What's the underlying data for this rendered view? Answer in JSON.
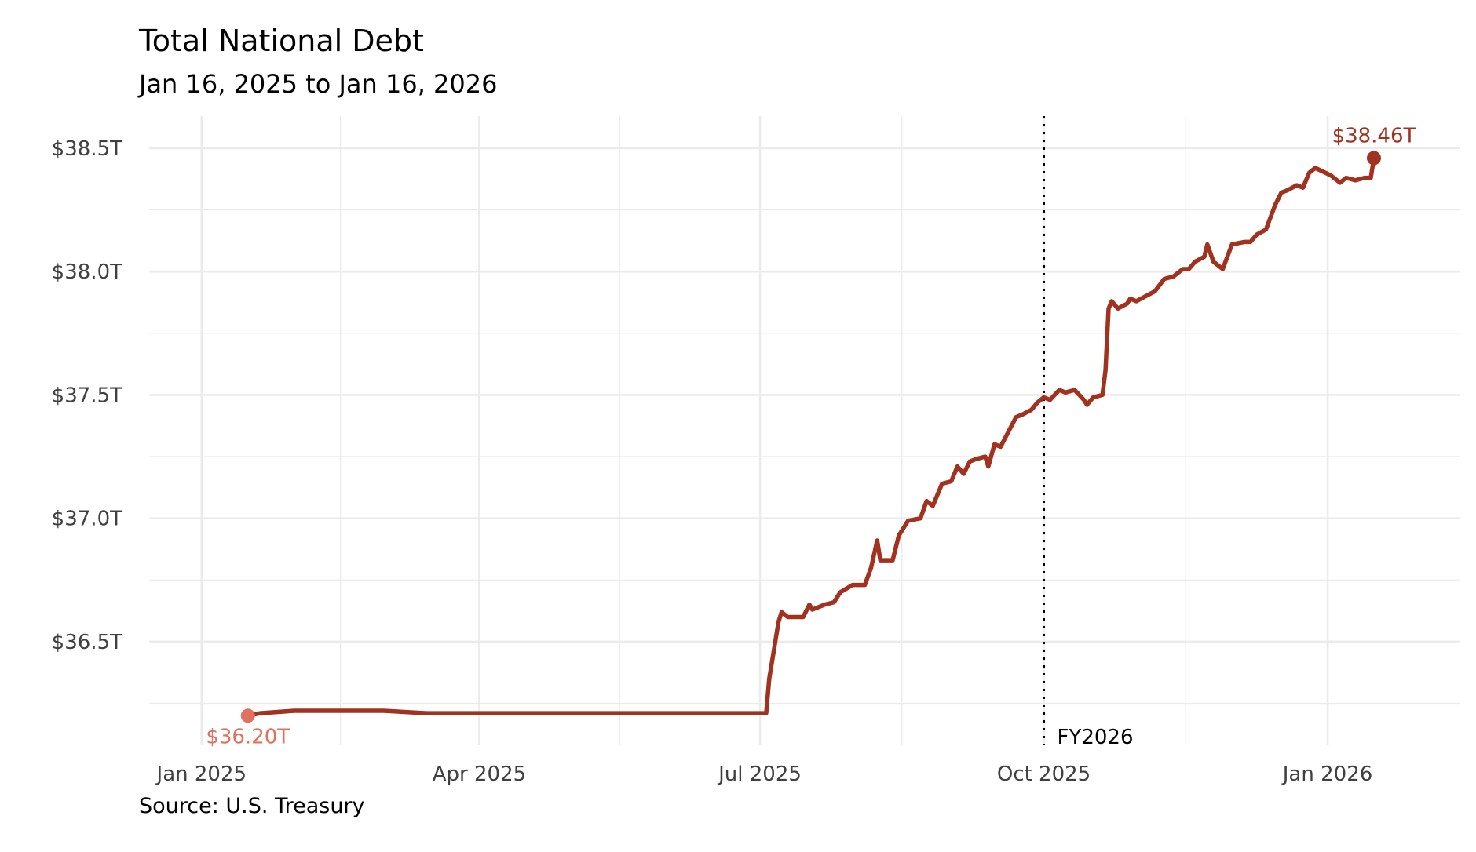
{
  "title": "Total National Debt",
  "subtitle": "Jan 16, 2025 to Jan 16, 2026",
  "source": "Source: U.S. Treasury",
  "colors": {
    "line": "#A0321F",
    "start_point": "#E07060",
    "grid": "#EBEBEB",
    "tick_text": "#404040",
    "vline": "#000000"
  },
  "chart_data": {
    "type": "line",
    "title": "Total National Debt",
    "subtitle": "Jan 16, 2025 to Jan 16, 2026",
    "xlabel": "",
    "ylabel": "",
    "x_ticks": [
      {
        "date": "2025-01-01",
        "label": "Jan 2025"
      },
      {
        "date": "2025-04-01",
        "label": "Apr 2025"
      },
      {
        "date": "2025-07-01",
        "label": "Jul 2025"
      },
      {
        "date": "2025-10-01",
        "label": "Oct 2025"
      },
      {
        "date": "2026-01-01",
        "label": "Jan 2026"
      }
    ],
    "y_ticks": [
      {
        "value": 36.5,
        "label": "$36.5T"
      },
      {
        "value": 37.0,
        "label": "$37.0T"
      },
      {
        "value": 37.5,
        "label": "$37.5T"
      },
      {
        "value": 38.0,
        "label": "$38.0T"
      },
      {
        "value": 38.5,
        "label": "$38.5T"
      }
    ],
    "xlim": [
      "2024-12-15",
      "2026-02-13"
    ],
    "ylim": [
      36.08,
      38.63
    ],
    "grid": true,
    "series": [
      {
        "points": [
          [
            "2025-01-16",
            36.2
          ],
          [
            "2025-01-20",
            36.21
          ],
          [
            "2025-01-31",
            36.22
          ],
          [
            "2025-02-15",
            36.22
          ],
          [
            "2025-03-01",
            36.22
          ],
          [
            "2025-03-15",
            36.21
          ],
          [
            "2025-04-01",
            36.21
          ],
          [
            "2025-04-15",
            36.21
          ],
          [
            "2025-05-01",
            36.21
          ],
          [
            "2025-05-15",
            36.21
          ],
          [
            "2025-06-01",
            36.21
          ],
          [
            "2025-06-15",
            36.21
          ],
          [
            "2025-06-30",
            36.21
          ],
          [
            "2025-07-03",
            36.21
          ],
          [
            "2025-07-04",
            36.35
          ],
          [
            "2025-07-07",
            36.58
          ],
          [
            "2025-07-08",
            36.62
          ],
          [
            "2025-07-10",
            36.6
          ],
          [
            "2025-07-15",
            36.6
          ],
          [
            "2025-07-17",
            36.65
          ],
          [
            "2025-07-18",
            36.63
          ],
          [
            "2025-07-22",
            36.65
          ],
          [
            "2025-07-25",
            36.66
          ],
          [
            "2025-07-27",
            36.7
          ],
          [
            "2025-07-31",
            36.73
          ],
          [
            "2025-08-04",
            36.73
          ],
          [
            "2025-08-06",
            36.8
          ],
          [
            "2025-08-08",
            36.91
          ],
          [
            "2025-08-09",
            36.83
          ],
          [
            "2025-08-13",
            36.83
          ],
          [
            "2025-08-15",
            36.93
          ],
          [
            "2025-08-18",
            36.99
          ],
          [
            "2025-08-22",
            37.0
          ],
          [
            "2025-08-24",
            37.07
          ],
          [
            "2025-08-26",
            37.05
          ],
          [
            "2025-08-29",
            37.14
          ],
          [
            "2025-09-01",
            37.15
          ],
          [
            "2025-09-03",
            37.21
          ],
          [
            "2025-09-05",
            37.18
          ],
          [
            "2025-09-07",
            37.23
          ],
          [
            "2025-09-09",
            37.24
          ],
          [
            "2025-09-12",
            37.25
          ],
          [
            "2025-09-13",
            37.21
          ],
          [
            "2025-09-15",
            37.3
          ],
          [
            "2025-09-17",
            37.29
          ],
          [
            "2025-09-22",
            37.41
          ],
          [
            "2025-09-24",
            37.42
          ],
          [
            "2025-09-27",
            37.44
          ],
          [
            "2025-09-29",
            37.47
          ],
          [
            "2025-10-01",
            37.49
          ],
          [
            "2025-10-03",
            37.48
          ],
          [
            "2025-10-06",
            37.52
          ],
          [
            "2025-10-08",
            37.51
          ],
          [
            "2025-10-11",
            37.52
          ],
          [
            "2025-10-14",
            37.48
          ],
          [
            "2025-10-15",
            37.46
          ],
          [
            "2025-10-17",
            37.49
          ],
          [
            "2025-10-20",
            37.5
          ],
          [
            "2025-10-21",
            37.6
          ],
          [
            "2025-10-22",
            37.85
          ],
          [
            "2025-10-23",
            37.88
          ],
          [
            "2025-10-25",
            37.85
          ],
          [
            "2025-10-28",
            37.87
          ],
          [
            "2025-10-29",
            37.89
          ],
          [
            "2025-10-31",
            37.88
          ],
          [
            "2025-11-03",
            37.9
          ],
          [
            "2025-11-06",
            37.92
          ],
          [
            "2025-11-09",
            37.97
          ],
          [
            "2025-11-12",
            37.98
          ],
          [
            "2025-11-13",
            37.99
          ],
          [
            "2025-11-15",
            38.01
          ],
          [
            "2025-11-17",
            38.01
          ],
          [
            "2025-11-19",
            38.04
          ],
          [
            "2025-11-22",
            38.06
          ],
          [
            "2025-11-23",
            38.11
          ],
          [
            "2025-11-25",
            38.04
          ],
          [
            "2025-11-28",
            38.01
          ],
          [
            "2025-12-01",
            38.11
          ],
          [
            "2025-12-05",
            38.12
          ],
          [
            "2025-12-07",
            38.12
          ],
          [
            "2025-12-09",
            38.15
          ],
          [
            "2025-12-12",
            38.17
          ],
          [
            "2025-12-15",
            38.27
          ],
          [
            "2025-12-17",
            38.32
          ],
          [
            "2025-12-19",
            38.33
          ],
          [
            "2025-12-22",
            38.35
          ],
          [
            "2025-12-24",
            38.34
          ],
          [
            "2025-12-26",
            38.4
          ],
          [
            "2025-12-28",
            38.42
          ],
          [
            "2026-01-02",
            38.39
          ],
          [
            "2026-01-05",
            38.36
          ],
          [
            "2026-01-07",
            38.38
          ],
          [
            "2026-01-10",
            38.37
          ],
          [
            "2026-01-13",
            38.38
          ],
          [
            "2026-01-15",
            38.38
          ],
          [
            "2026-01-16",
            38.46
          ]
        ]
      }
    ],
    "vline": {
      "date": "2025-10-01",
      "label": "FY2026",
      "style": "dotted"
    },
    "annotations": {
      "start": {
        "date": "2025-01-16",
        "value": 36.2,
        "label": "$36.20T"
      },
      "end": {
        "date": "2026-01-16",
        "value": 38.46,
        "label": "$38.46T"
      }
    }
  }
}
